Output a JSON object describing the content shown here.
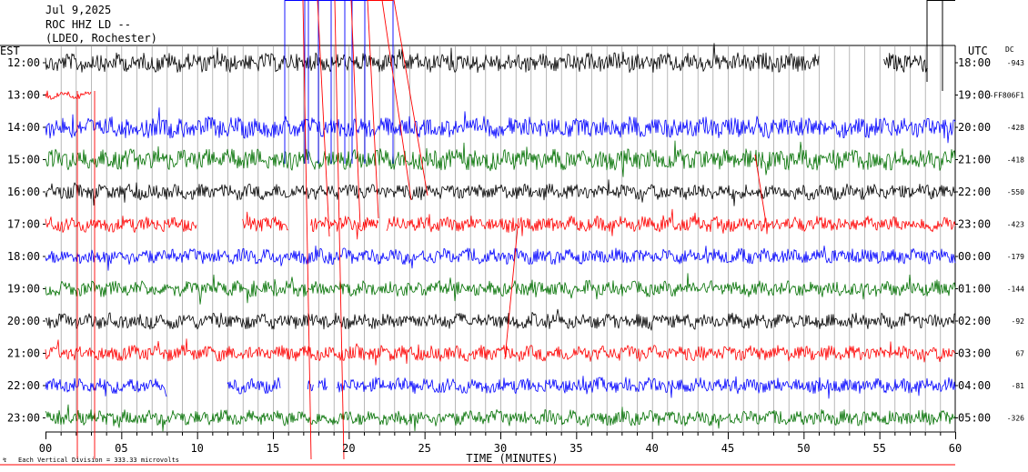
{
  "header": {
    "date": "Jul 9,2025",
    "station": "ROC HHZ LD --",
    "org": "(LDEO, Rochester)"
  },
  "left_tz": "EST",
  "right_tz": "UTC",
  "dc_header": "DC",
  "footer": {
    "scale_note": "Each Vertical Division =  333.33 microvolts"
  },
  "chart_data": {
    "type": "line",
    "title": "",
    "xlabel": "TIME (MINUTES)",
    "ylabel": "",
    "xlim": [
      0,
      60
    ],
    "x_ticks": [
      "00",
      "05",
      "10",
      "15",
      "20",
      "25",
      "30",
      "35",
      "40",
      "45",
      "50",
      "55",
      "60"
    ],
    "rows": [
      {
        "est": "12:00",
        "utc": "18:00",
        "dc": "-943",
        "color": "#000000",
        "segments": [
          [
            0,
            51
          ],
          [
            55.3,
            58.2
          ]
        ]
      },
      {
        "est": "13:00",
        "utc": "19:00",
        "dc": "-FF806F1",
        "color": "#ff0000",
        "segments": [
          [
            0,
            3
          ]
        ]
      },
      {
        "est": "14:00",
        "utc": "20:00",
        "dc": "-428",
        "color": "#0000ff",
        "segments": [
          [
            0,
            60
          ]
        ]
      },
      {
        "est": "15:00",
        "utc": "21:00",
        "dc": "-418",
        "color": "#007000",
        "segments": [
          [
            0,
            60
          ]
        ]
      },
      {
        "est": "16:00",
        "utc": "22:00",
        "dc": "-550",
        "color": "#000000",
        "segments": [
          [
            0,
            60
          ]
        ]
      },
      {
        "est": "17:00",
        "utc": "23:00",
        "dc": "-423",
        "color": "#ff0000",
        "segments": [
          [
            0,
            10
          ],
          [
            13,
            16
          ],
          [
            17.5,
            22
          ],
          [
            22.5,
            60
          ]
        ]
      },
      {
        "est": "18:00",
        "utc": "00:00",
        "dc": "-179",
        "color": "#0000ff",
        "segments": [
          [
            0,
            60
          ]
        ]
      },
      {
        "est": "19:00",
        "utc": "01:00",
        "dc": "-144",
        "color": "#007000",
        "segments": [
          [
            0,
            60
          ]
        ]
      },
      {
        "est": "20:00",
        "utc": "02:00",
        "dc": "-92",
        "color": "#000000",
        "segments": [
          [
            0,
            60
          ]
        ]
      },
      {
        "est": "21:00",
        "utc": "03:00",
        "dc": "67",
        "color": "#ff0000",
        "segments": [
          [
            0,
            60
          ]
        ]
      },
      {
        "est": "22:00",
        "utc": "04:00",
        "dc": "-81",
        "color": "#0000ff",
        "segments": [
          [
            0,
            8
          ],
          [
            12,
            15.5
          ],
          [
            17.3,
            17.7
          ],
          [
            18,
            18.6
          ],
          [
            19.2,
            60
          ]
        ]
      },
      {
        "est": "23:00",
        "utc": "05:00",
        "dc": "-326",
        "color": "#007000",
        "segments": [
          [
            0,
            60
          ]
        ]
      }
    ]
  }
}
